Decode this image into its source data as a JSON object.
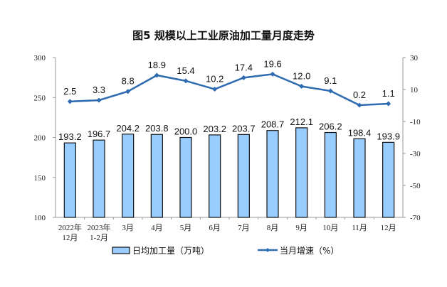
{
  "chart_data": {
    "type": "bar+line",
    "title": "图5  规模以上工业原油加工量月度走势",
    "categories": [
      "2022年\n12月",
      "2023年\n1-2月",
      "3月",
      "4月",
      "5月",
      "6月",
      "7月",
      "8月",
      "9月",
      "10月",
      "11月",
      "12月"
    ],
    "series": [
      {
        "name": "日均加工量（万吨）",
        "type": "bar",
        "axis": "left",
        "values": [
          193.2,
          196.7,
          204.2,
          203.8,
          200.0,
          203.2,
          203.7,
          208.7,
          212.1,
          206.2,
          198.4,
          193.9
        ],
        "labels": [
          "193.2",
          "196.7",
          "204.2",
          "203.8",
          "200.0",
          "203.2",
          "203.7",
          "208.7",
          "212.1",
          "206.2",
          "198.4",
          "193.9"
        ]
      },
      {
        "name": "当月增速（%）",
        "type": "line",
        "axis": "right",
        "values": [
          2.5,
          3.3,
          8.8,
          18.9,
          15.4,
          10.2,
          17.4,
          19.6,
          12.0,
          9.1,
          0.2,
          1.1
        ],
        "labels": [
          "2.5",
          "3.3",
          "8.8",
          "18.9",
          "15.4",
          "10.2",
          "17.4",
          "19.6",
          "12.0",
          "9.1",
          "0.2",
          "1.1"
        ]
      }
    ],
    "yleft": {
      "range": [
        100,
        300
      ],
      "ticks": [
        "100",
        "150",
        "200",
        "250",
        "300"
      ]
    },
    "yright": {
      "range": [
        -70,
        30
      ],
      "ticks": [
        "-70",
        "-50",
        "-30",
        "-10",
        "10",
        "30"
      ]
    },
    "grid": false,
    "legend": "bottom",
    "colors": {
      "bar": "#99ccff",
      "bar_edge": "#111111",
      "line": "#2e6bb0"
    }
  }
}
